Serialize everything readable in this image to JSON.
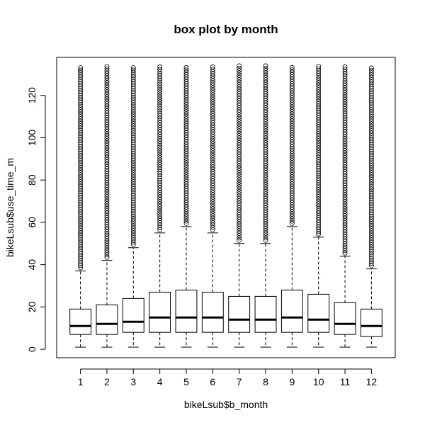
{
  "chart_data": {
    "type": "box",
    "title": "box plot by month",
    "xlabel": "bikeLsub$b_month",
    "ylabel": "bikeLsub$use_time_m",
    "ylim": [
      -4,
      138
    ],
    "yticks": [
      0,
      20,
      40,
      60,
      80,
      100,
      120
    ],
    "categories": [
      "1",
      "2",
      "3",
      "4",
      "5",
      "6",
      "7",
      "8",
      "9",
      "10",
      "11",
      "12"
    ],
    "outlier_max": 134,
    "boxes": [
      {
        "category": "1",
        "min": 1,
        "q1": 7,
        "median": 11,
        "q3": 19,
        "max": 37
      },
      {
        "category": "2",
        "min": 1,
        "q1": 7,
        "median": 12,
        "q3": 21,
        "max": 42
      },
      {
        "category": "3",
        "min": 1,
        "q1": 8,
        "median": 13,
        "q3": 24,
        "max": 48
      },
      {
        "category": "4",
        "min": 1,
        "q1": 8,
        "median": 15,
        "q3": 27,
        "max": 55
      },
      {
        "category": "5",
        "min": 1,
        "q1": 8,
        "median": 15,
        "q3": 28,
        "max": 58
      },
      {
        "category": "6",
        "min": 1,
        "q1": 8,
        "median": 15,
        "q3": 27,
        "max": 55
      },
      {
        "category": "7",
        "min": 1,
        "q1": 8,
        "median": 14,
        "q3": 25,
        "max": 50
      },
      {
        "category": "8",
        "min": 1,
        "q1": 8,
        "median": 14,
        "q3": 25,
        "max": 50
      },
      {
        "category": "9",
        "min": 1,
        "q1": 8,
        "median": 15,
        "q3": 28,
        "max": 58
      },
      {
        "category": "10",
        "min": 1,
        "q1": 8,
        "median": 14,
        "q3": 26,
        "max": 53
      },
      {
        "category": "11",
        "min": 1,
        "q1": 7,
        "median": 12,
        "q3": 22,
        "max": 44
      },
      {
        "category": "12",
        "min": 1,
        "q1": 6,
        "median": 11,
        "q3": 19,
        "max": 38
      }
    ],
    "grid": false,
    "legend": "none"
  }
}
